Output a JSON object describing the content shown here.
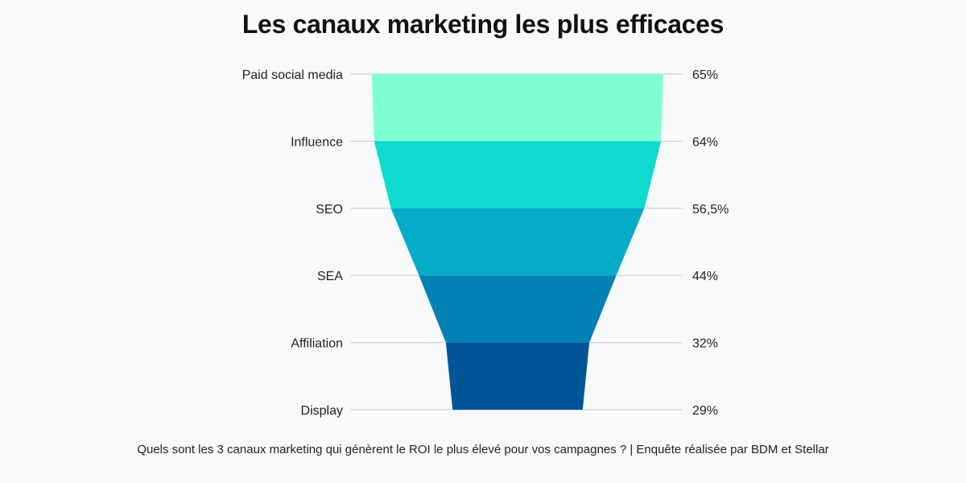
{
  "chart_data": {
    "type": "funnel",
    "title": "Les canaux marketing les plus efficaces",
    "caption": "Quels sont les 3 canaux marketing qui génèrent le ROI le plus élevé pour vos campagnes ? | Enquête réalisée par BDM et Stellar",
    "categories": [
      "Paid social media",
      "Influence",
      "SEO",
      "SEA",
      "Affiliation",
      "Display"
    ],
    "values": [
      65,
      64,
      56.5,
      44,
      32,
      29
    ],
    "value_labels": [
      "65%",
      "64%",
      "56,5%",
      "44%",
      "32%",
      "29%"
    ],
    "colors": [
      "#7fffd4",
      "#10d9cf",
      "#03adc7",
      "#0381b5",
      "#005597"
    ],
    "grid": true,
    "legend": "none"
  }
}
